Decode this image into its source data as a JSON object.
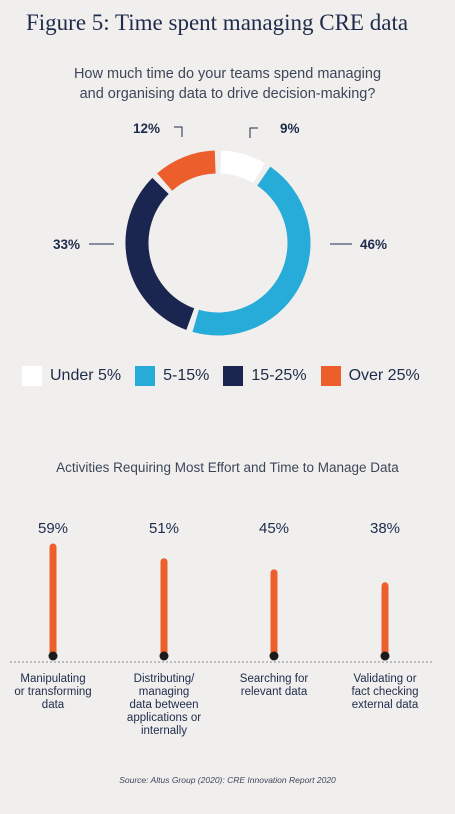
{
  "chart_data": [
    {
      "type": "pie",
      "title": "Figure 5: Time spent managing CRE data",
      "subtitle": "How much time do your teams spend managing\nand organising data to drive decision-making?",
      "categories": [
        "Under 5%",
        "5-15%",
        "15-25%",
        "Over 25%"
      ],
      "values": [
        9,
        46,
        33,
        12
      ],
      "value_labels": [
        "9%",
        "46%",
        "33%",
        "12%"
      ],
      "colors": [
        "#ffffff",
        "#27acd9",
        "#1b2650",
        "#ec5f2c"
      ],
      "legend": "bottom"
    },
    {
      "type": "bar",
      "title": "Activities Requiring Most Effort and Time to Manage Data",
      "categories": [
        "Manipulating\nor transforming\ndata",
        "Distributing/\nmanaging\ndata between\napplications or\ninternally",
        "Searching for\nrelevant data",
        "Validating or\nfact checking\nexternal data"
      ],
      "values": [
        59,
        51,
        45,
        38
      ],
      "value_labels": [
        "59%",
        "51%",
        "45%",
        "38%"
      ],
      "color": "#ec5f2c"
    }
  ],
  "source": "Source: Altus Group (2020): CRE Innovation Report 2020"
}
